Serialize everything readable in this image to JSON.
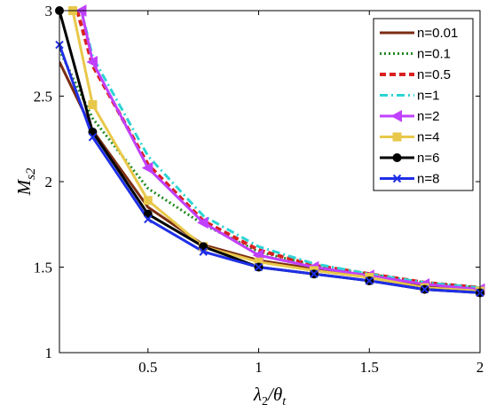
{
  "chart_data": {
    "type": "line",
    "xlabel": "λ2/θt",
    "ylabel": "Ms2",
    "xlim": [
      0.1,
      2
    ],
    "ylim": [
      1,
      3
    ],
    "xticks": [
      0.5,
      1,
      1.5,
      2
    ],
    "xtick_labels": [
      "0.5",
      "1",
      "1.5",
      "2"
    ],
    "yticks": [
      1,
      1.5,
      2,
      2.5,
      3
    ],
    "ytick_labels": [
      "1",
      "1.5",
      "2",
      "2.5",
      "3"
    ],
    "grid": false,
    "legend_position": "top-right",
    "series": [
      {
        "name": "n=0.01",
        "color": "#7b2d12",
        "dash": "solid",
        "marker": "none",
        "x": [
          0.1,
          0.25,
          0.5,
          0.75,
          1,
          1.25,
          1.5,
          1.75,
          2
        ],
        "y": [
          2.7,
          2.3,
          1.85,
          1.63,
          1.54,
          1.49,
          1.44,
          1.39,
          1.36
        ]
      },
      {
        "name": "n=0.1",
        "color": "#1f8a1f",
        "dash": "dotted",
        "marker": "none",
        "x": [
          0.1,
          0.25,
          0.5,
          0.75,
          1,
          1.25,
          1.5,
          1.75,
          2
        ],
        "y": [
          2.77,
          2.37,
          1.96,
          1.75,
          1.59,
          1.51,
          1.46,
          1.41,
          1.38
        ]
      },
      {
        "name": "n=0.5",
        "color": "#d92020",
        "dash": "dashed",
        "marker": "none",
        "x": [
          0.18,
          0.25,
          0.5,
          0.75,
          1,
          1.25,
          1.5,
          1.75,
          2
        ],
        "y": [
          3.0,
          2.68,
          2.1,
          1.77,
          1.6,
          1.51,
          1.46,
          1.41,
          1.38
        ]
      },
      {
        "name": "n=1",
        "color": "#2dd4d4",
        "dash": "dashdot",
        "marker": "none",
        "x": [
          0.2,
          0.25,
          0.5,
          0.75,
          1,
          1.25,
          1.5,
          1.75,
          2
        ],
        "y": [
          3.0,
          2.73,
          2.15,
          1.8,
          1.62,
          1.52,
          1.46,
          1.41,
          1.38
        ]
      },
      {
        "name": "n=2",
        "color": "#c040ff",
        "dash": "solid",
        "marker": "triangle-left",
        "x": [
          0.2,
          0.25,
          0.5,
          0.75,
          1,
          1.25,
          1.5,
          1.75,
          2
        ],
        "y": [
          3.0,
          2.7,
          2.08,
          1.76,
          1.57,
          1.5,
          1.45,
          1.4,
          1.37
        ]
      },
      {
        "name": "n=4",
        "color": "#e8c84a",
        "dash": "solid",
        "marker": "square",
        "x": [
          0.16,
          0.25,
          0.5,
          0.75,
          1,
          1.25,
          1.5,
          1.75,
          2
        ],
        "y": [
          3.0,
          2.45,
          1.89,
          1.62,
          1.53,
          1.48,
          1.44,
          1.38,
          1.36
        ]
      },
      {
        "name": "n=6",
        "color": "#000000",
        "dash": "solid",
        "marker": "circle",
        "x": [
          0.1,
          0.25,
          0.5,
          0.75,
          1,
          1.25,
          1.5,
          1.75,
          2
        ],
        "y": [
          3.0,
          2.29,
          1.81,
          1.62,
          1.5,
          1.46,
          1.42,
          1.37,
          1.35
        ]
      },
      {
        "name": "n=8",
        "color": "#1f2fe6",
        "dash": "solid",
        "marker": "x",
        "x": [
          0.1,
          0.25,
          0.5,
          0.75,
          1,
          1.25,
          1.5,
          1.75,
          2
        ],
        "y": [
          2.8,
          2.26,
          1.78,
          1.59,
          1.5,
          1.46,
          1.42,
          1.37,
          1.35
        ]
      }
    ]
  }
}
